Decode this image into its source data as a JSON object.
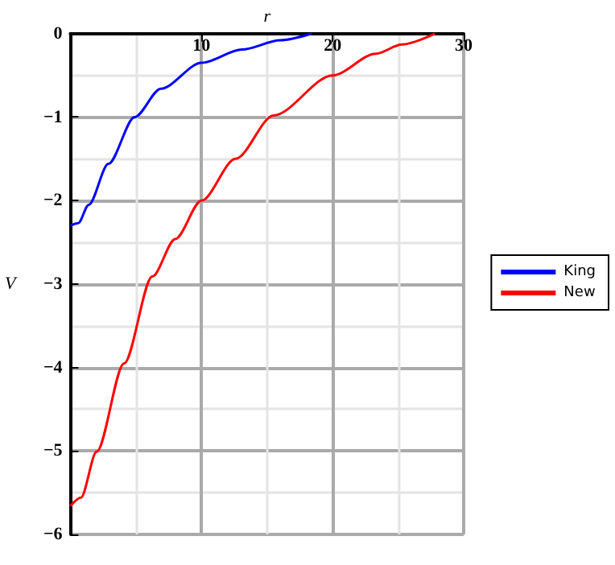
{
  "chart_data": {
    "type": "line",
    "xlabel": "r",
    "ylabel": "V",
    "xlim": [
      0,
      30
    ],
    "xticks": [
      10,
      20,
      30
    ],
    "ylim": [
      -6,
      0
    ],
    "yticks": [
      -6,
      -5,
      -4,
      -3,
      -2,
      -1,
      0
    ],
    "grid": true,
    "legend": "right",
    "marker": "none",
    "line_style": "solid",
    "series": [
      {
        "name": "King",
        "color": "#0000ff",
        "x": [
          0,
          0.6,
          1.4,
          2.9,
          4.9,
          6.9,
          10,
          13.1,
          16,
          18.4
        ],
        "values": [
          -2.3,
          -2.27,
          -2.05,
          -1.56,
          -1.0,
          -0.66,
          -0.35,
          -0.19,
          -0.08,
          0
        ]
      },
      {
        "name": "New",
        "color": "#ff0000",
        "x": [
          0,
          0.8,
          2.0,
          4.1,
          6.25,
          8.0,
          10,
          12.6,
          15.5,
          20,
          23.3,
          25.3,
          27.8
        ],
        "values": [
          -5.66,
          -5.56,
          -5.01,
          -3.95,
          -2.91,
          -2.46,
          -2.0,
          -1.5,
          -0.98,
          -0.5,
          -0.24,
          -0.13,
          0
        ]
      }
    ]
  }
}
